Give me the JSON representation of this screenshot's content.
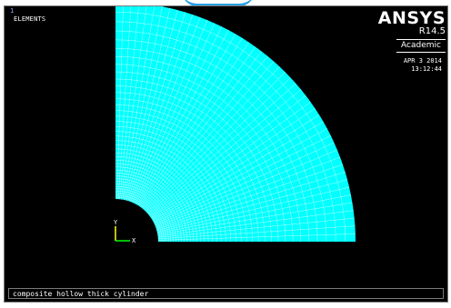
{
  "window": {
    "number": "1",
    "plot_label": "ELEMENTS"
  },
  "branding": {
    "product": "ANSYS",
    "version": "R14.5",
    "license": "Academic"
  },
  "datetime": {
    "date": "APR  3 2014",
    "time": "13:12:44"
  },
  "triad": {
    "y_label": "Y",
    "x_label": "X",
    "icon": "axis-triad-icon"
  },
  "caption": "composite hollow thick cylinder",
  "colors": {
    "background": "#000000",
    "mesh_fill": "#00ffff",
    "mesh_lines": "#ffffff",
    "triad_y": "#ffff00",
    "triad_x": "#00ff00"
  }
}
